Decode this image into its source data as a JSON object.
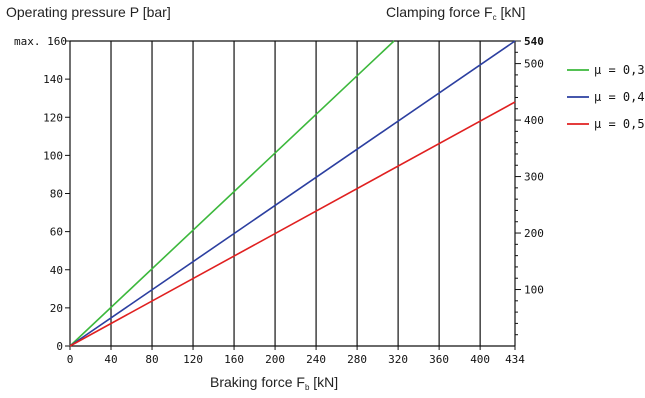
{
  "chart_data": {
    "type": "line",
    "left_axis": {
      "label": "Operating pressure P [bar]",
      "ticks": [
        0,
        20,
        40,
        60,
        80,
        100,
        120,
        140,
        160
      ],
      "max_prefix": "max.",
      "range": [
        0,
        160
      ]
    },
    "right_axis": {
      "label_main": "Clamping force F",
      "label_sub": "c",
      "label_unit": " [kN]",
      "ticks": [
        100,
        200,
        300,
        400,
        500,
        540
      ],
      "range": [
        0,
        540
      ]
    },
    "x_axis": {
      "label_main": "Braking force F",
      "label_sub": "b",
      "label_unit": " [kN]",
      "ticks": [
        0,
        40,
        80,
        120,
        160,
        200,
        240,
        280,
        320,
        360,
        400,
        434
      ],
      "range": [
        0,
        434
      ]
    },
    "grid": {
      "vertical": true,
      "horizontal": false
    },
    "legend_position": "right",
    "series": [
      {
        "name": "μ = 0,3",
        "color": "#3cb83c",
        "x": [
          0,
          316
        ],
        "y": [
          0,
          160
        ]
      },
      {
        "name": "μ = 0,4",
        "color": "#2c3fa0",
        "x": [
          0,
          434
        ],
        "y": [
          0,
          160
        ]
      },
      {
        "name": "μ = 0,5",
        "color": "#e02020",
        "x": [
          0,
          434
        ],
        "y": [
          0,
          128
        ]
      }
    ]
  }
}
